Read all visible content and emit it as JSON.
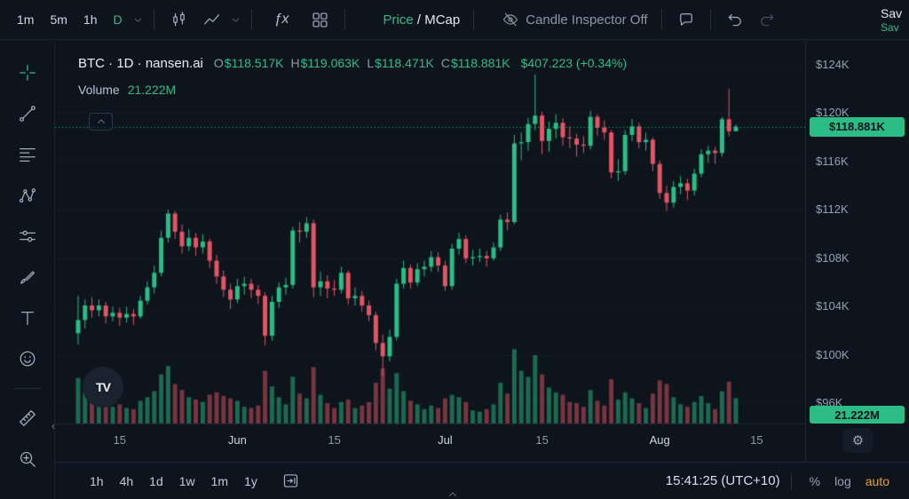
{
  "toolbar": {
    "timeframes": [
      "1m",
      "5m",
      "1h",
      "D"
    ],
    "fx": "ƒx",
    "price_label": "Price",
    "slash": " / ",
    "mcap_label": "MCap",
    "candle_inspector": "Candle Inspector Off",
    "save_line1": "Sav",
    "save_line2": "Sav"
  },
  "legend": {
    "symbol": "BTC · 1D · nansen.ai",
    "ohlc": [
      {
        "label": "O",
        "value": "$118.517K"
      },
      {
        "label": "H",
        "value": "$119.063K"
      },
      {
        "label": "L",
        "value": "$118.471K"
      },
      {
        "label": "C",
        "value": "$118.881K"
      }
    ],
    "change": "$407.223 (+0.34%)",
    "volume_label": "Volume",
    "volume_value": "21.222M"
  },
  "price_axis": {
    "current_price_badge": "$118.881K",
    "volume_badge": "21.222M"
  },
  "bottom_bar": {
    "ranges": [
      "1h",
      "4h",
      "1d",
      "1w",
      "1m",
      "1y"
    ],
    "clock": "15:41:25 (UTC+10)",
    "percent": "%",
    "log": "log",
    "auto": "auto"
  },
  "watermark": "TV",
  "colors": {
    "green": "#2bbd85",
    "red": "#e25564",
    "badge_text": "#071118",
    "auto_accent": "#e0a23e"
  },
  "chart_data": {
    "type": "candlestick",
    "symbol": "BTC",
    "interval": "1D",
    "price_unit": "thousand USD",
    "legend_position": "top-left",
    "grid": "off",
    "current_price": {
      "value": 118.881,
      "label": "$118.881K"
    },
    "last_volume_label": "21.222M",
    "ohlc_last": {
      "o": 118.517,
      "h": 119.063,
      "l": 118.471,
      "c": 118.881,
      "change": "+0.34%"
    },
    "price_ticks": [
      {
        "label": "$124K",
        "value": 124
      },
      {
        "label": "$120K",
        "value": 120
      },
      {
        "label": "$116K",
        "value": 116
      },
      {
        "label": "$112K",
        "value": 112
      },
      {
        "label": "$108K",
        "value": 108
      },
      {
        "label": "$104K",
        "value": 104
      },
      {
        "label": "$100K",
        "value": 100
      },
      {
        "label": "$96K",
        "value": 96
      }
    ],
    "time_ticks": [
      {
        "label": "15",
        "index": 6,
        "major": false
      },
      {
        "label": "Jun",
        "index": 23,
        "major": true
      },
      {
        "label": "15",
        "index": 37,
        "major": false
      },
      {
        "label": "Jul",
        "index": 53,
        "major": true
      },
      {
        "label": "15",
        "index": 67,
        "major": false
      },
      {
        "label": "Aug",
        "index": 84,
        "major": true
      },
      {
        "label": "15",
        "index": 98,
        "major": false
      }
    ],
    "volume_unit": "M",
    "candles_format": [
      "open",
      "high",
      "low",
      "close",
      "volume"
    ],
    "candles": [
      [
        101.8,
        104.9,
        100.9,
        102.9,
        38
      ],
      [
        102.9,
        104.6,
        102.2,
        104.1,
        26
      ],
      [
        104.1,
        104.8,
        103.1,
        103.7,
        18
      ],
      [
        103.7,
        104.6,
        103.2,
        104.1,
        15
      ],
      [
        104.1,
        104.4,
        102.6,
        103.2,
        17
      ],
      [
        103.2,
        104.0,
        102.8,
        103.5,
        14
      ],
      [
        103.5,
        103.9,
        102.4,
        103.1,
        16
      ],
      [
        103.1,
        104.0,
        102.7,
        103.4,
        13
      ],
      [
        103.4,
        103.8,
        102.5,
        103.2,
        12
      ],
      [
        103.2,
        104.9,
        103.0,
        104.5,
        19
      ],
      [
        104.5,
        106.1,
        104.2,
        105.6,
        22
      ],
      [
        105.6,
        107.4,
        105.1,
        106.8,
        27
      ],
      [
        106.8,
        110.3,
        106.5,
        109.7,
        41
      ],
      [
        109.7,
        112.0,
        109.3,
        111.7,
        48
      ],
      [
        111.7,
        111.9,
        109.6,
        110.2,
        33
      ],
      [
        110.2,
        110.8,
        108.4,
        109.0,
        28
      ],
      [
        109.0,
        110.4,
        108.6,
        109.7,
        22
      ],
      [
        109.7,
        110.1,
        108.2,
        108.9,
        20
      ],
      [
        108.9,
        110.0,
        108.4,
        109.4,
        18
      ],
      [
        109.4,
        109.6,
        107.2,
        107.8,
        24
      ],
      [
        107.8,
        108.3,
        105.9,
        106.5,
        26
      ],
      [
        106.5,
        107.0,
        104.8,
        105.4,
        23
      ],
      [
        105.4,
        105.9,
        103.8,
        104.6,
        21
      ],
      [
        104.6,
        106.3,
        104.3,
        105.7,
        19
      ],
      [
        105.7,
        106.5,
        105.0,
        105.9,
        14
      ],
      [
        105.9,
        106.3,
        104.7,
        105.4,
        13
      ],
      [
        105.4,
        105.8,
        104.2,
        104.9,
        15
      ],
      [
        104.9,
        105.2,
        100.8,
        101.6,
        44
      ],
      [
        101.6,
        104.9,
        101.2,
        104.4,
        31
      ],
      [
        104.4,
        106.0,
        103.9,
        105.6,
        22
      ],
      [
        105.6,
        106.4,
        105.0,
        105.8,
        16
      ],
      [
        105.8,
        110.6,
        105.5,
        110.3,
        39
      ],
      [
        110.3,
        111.0,
        109.3,
        110.2,
        25
      ],
      [
        110.2,
        111.4,
        109.7,
        110.9,
        21
      ],
      [
        110.9,
        111.2,
        104.8,
        105.6,
        47
      ],
      [
        105.6,
        106.9,
        104.9,
        106.1,
        24
      ],
      [
        106.1,
        106.6,
        104.7,
        105.5,
        17
      ],
      [
        105.5,
        106.2,
        104.9,
        105.4,
        13
      ],
      [
        105.4,
        107.3,
        105.1,
        106.8,
        18
      ],
      [
        106.8,
        107.0,
        104.2,
        104.7,
        20
      ],
      [
        104.7,
        105.6,
        104.1,
        104.9,
        13
      ],
      [
        104.9,
        105.3,
        103.6,
        104.1,
        15
      ],
      [
        104.1,
        104.5,
        102.8,
        103.3,
        18
      ],
      [
        103.3,
        103.6,
        100.4,
        101.0,
        34
      ],
      [
        101.0,
        101.7,
        98.3,
        99.9,
        46
      ],
      [
        99.9,
        102.1,
        99.5,
        101.5,
        29
      ],
      [
        101.5,
        106.3,
        101.2,
        105.9,
        42
      ],
      [
        105.9,
        107.8,
        105.5,
        107.2,
        27
      ],
      [
        107.2,
        107.5,
        105.5,
        106.0,
        19
      ],
      [
        106.0,
        107.6,
        105.7,
        107.1,
        16
      ],
      [
        107.1,
        107.8,
        106.5,
        107.3,
        12
      ],
      [
        107.3,
        108.6,
        106.9,
        108.1,
        15
      ],
      [
        108.1,
        108.5,
        106.9,
        107.4,
        13
      ],
      [
        107.4,
        107.8,
        105.3,
        105.7,
        21
      ],
      [
        105.7,
        109.2,
        105.4,
        108.8,
        24
      ],
      [
        108.8,
        110.1,
        108.3,
        109.6,
        22
      ],
      [
        109.6,
        109.9,
        107.6,
        108.0,
        18
      ],
      [
        108.0,
        108.7,
        107.4,
        108.1,
        11
      ],
      [
        108.1,
        108.8,
        107.7,
        108.2,
        10
      ],
      [
        108.2,
        108.6,
        107.3,
        108.0,
        12
      ],
      [
        108.0,
        109.3,
        107.8,
        108.9,
        16
      ],
      [
        108.9,
        111.6,
        108.6,
        111.2,
        34
      ],
      [
        111.2,
        111.8,
        110.3,
        111.0,
        25
      ],
      [
        111.0,
        118.2,
        110.8,
        117.5,
        62
      ],
      [
        117.5,
        118.4,
        116.1,
        117.6,
        44
      ],
      [
        117.6,
        119.6,
        116.9,
        119.1,
        39
      ],
      [
        119.1,
        123.2,
        118.6,
        119.8,
        57
      ],
      [
        119.8,
        120.1,
        116.6,
        117.7,
        41
      ],
      [
        117.7,
        119.3,
        116.8,
        118.7,
        30
      ],
      [
        118.7,
        119.9,
        117.9,
        119.2,
        26
      ],
      [
        119.2,
        119.6,
        117.3,
        118.0,
        24
      ],
      [
        118.0,
        118.9,
        117.1,
        117.9,
        18
      ],
      [
        117.9,
        118.3,
        116.4,
        117.4,
        17
      ],
      [
        117.4,
        118.1,
        116.7,
        117.3,
        14
      ],
      [
        117.3,
        120.2,
        117.0,
        119.7,
        28
      ],
      [
        119.7,
        119.9,
        118.1,
        118.8,
        19
      ],
      [
        118.8,
        119.4,
        117.8,
        118.4,
        15
      ],
      [
        118.4,
        118.6,
        114.6,
        115.1,
        37
      ],
      [
        115.1,
        116.2,
        114.4,
        115.2,
        20
      ],
      [
        115.2,
        118.6,
        114.9,
        118.2,
        26
      ],
      [
        118.2,
        119.5,
        117.7,
        118.9,
        21
      ],
      [
        118.9,
        119.2,
        117.1,
        117.6,
        17
      ],
      [
        117.6,
        118.4,
        116.9,
        117.8,
        13
      ],
      [
        117.8,
        118.0,
        115.2,
        115.8,
        25
      ],
      [
        115.8,
        116.1,
        112.9,
        113.4,
        36
      ],
      [
        113.4,
        114.0,
        111.9,
        112.6,
        33
      ],
      [
        112.6,
        114.4,
        112.2,
        113.9,
        22
      ],
      [
        113.9,
        114.8,
        113.3,
        114.2,
        16
      ],
      [
        114.2,
        114.6,
        112.8,
        113.6,
        14
      ],
      [
        113.6,
        115.4,
        113.2,
        115.0,
        18
      ],
      [
        115.0,
        117.0,
        114.7,
        116.6,
        23
      ],
      [
        116.6,
        117.3,
        115.9,
        116.9,
        17
      ],
      [
        116.9,
        117.2,
        115.8,
        116.7,
        12
      ],
      [
        116.7,
        119.7,
        116.4,
        119.5,
        27
      ],
      [
        119.5,
        122.0,
        118.1,
        118.5,
        35
      ],
      [
        118.517,
        119.063,
        118.471,
        118.881,
        21.222
      ]
    ]
  }
}
